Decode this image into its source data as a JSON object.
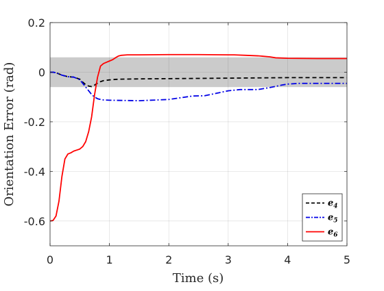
{
  "chart_data": {
    "type": "line",
    "title": "",
    "xlabel": "Time (s)",
    "ylabel": "Orientation Error (rad)",
    "xlim": [
      0,
      5
    ],
    "ylim": [
      -0.7,
      0.2
    ],
    "xticks": [
      0,
      1,
      2,
      3,
      4,
      5
    ],
    "xtick_labels": [
      "0",
      "1",
      "2",
      "3",
      "4",
      "5"
    ],
    "yticks": [
      0.2,
      0,
      -0.2,
      -0.4,
      -0.6
    ],
    "ytick_labels": [
      "0.2",
      "0",
      "-0.2",
      "-0.4",
      "-0.6"
    ],
    "grid": true,
    "legend_position": "bottom-right",
    "band": {
      "y_low": -0.06,
      "y_high": 0.06,
      "color": "#c8c8c8"
    },
    "series": [
      {
        "name": "e4",
        "legend_base": "e",
        "legend_sub": "4",
        "color": "#000000",
        "dash": "dashed",
        "x": [
          0,
          0.05,
          0.1,
          0.2,
          0.3,
          0.4,
          0.5,
          0.55,
          0.6,
          0.65,
          0.7,
          0.75,
          0.8,
          0.85,
          0.9,
          1.0,
          1.1,
          1.2,
          1.5,
          2.0,
          2.5,
          3.0,
          3.5,
          4.0,
          4.5,
          5.0
        ],
        "y": [
          0.0,
          0.0,
          -0.002,
          -0.012,
          -0.018,
          -0.02,
          -0.028,
          -0.04,
          -0.05,
          -0.056,
          -0.058,
          -0.052,
          -0.044,
          -0.038,
          -0.034,
          -0.031,
          -0.029,
          -0.028,
          -0.027,
          -0.026,
          -0.025,
          -0.024,
          -0.023,
          -0.022,
          -0.022,
          -0.022
        ]
      },
      {
        "name": "e5",
        "legend_base": "e",
        "legend_sub": "5",
        "color": "#0000e6",
        "dash": "dashdot",
        "x": [
          0,
          0.05,
          0.1,
          0.2,
          0.3,
          0.4,
          0.5,
          0.55,
          0.6,
          0.65,
          0.7,
          0.75,
          0.8,
          0.85,
          0.9,
          1.0,
          1.5,
          2.0,
          2.2,
          2.4,
          2.6,
          2.8,
          3.0,
          3.2,
          3.5,
          3.7,
          3.9,
          4.0,
          4.2,
          4.5,
          5.0
        ],
        "y": [
          0.0,
          0.0,
          -0.002,
          -0.012,
          -0.018,
          -0.02,
          -0.03,
          -0.045,
          -0.06,
          -0.075,
          -0.09,
          -0.1,
          -0.107,
          -0.11,
          -0.112,
          -0.113,
          -0.115,
          -0.11,
          -0.103,
          -0.096,
          -0.095,
          -0.085,
          -0.075,
          -0.07,
          -0.07,
          -0.062,
          -0.052,
          -0.048,
          -0.045,
          -0.045,
          -0.045
        ]
      },
      {
        "name": "e6",
        "legend_base": "e",
        "legend_sub": "6",
        "color": "#ff0000",
        "dash": "solid",
        "x": [
          0,
          0.05,
          0.1,
          0.15,
          0.2,
          0.25,
          0.3,
          0.35,
          0.4,
          0.45,
          0.5,
          0.55,
          0.6,
          0.65,
          0.7,
          0.75,
          0.8,
          0.85,
          0.9,
          0.95,
          1.0,
          1.05,
          1.1,
          1.15,
          1.2,
          1.3,
          1.5,
          2.0,
          2.5,
          3.0,
          3.1,
          3.3,
          3.5,
          3.7,
          3.8,
          4.0,
          4.5,
          5.0
        ],
        "y": [
          -0.6,
          -0.598,
          -0.58,
          -0.52,
          -0.42,
          -0.35,
          -0.33,
          -0.325,
          -0.318,
          -0.314,
          -0.31,
          -0.3,
          -0.28,
          -0.24,
          -0.18,
          -0.09,
          -0.02,
          0.025,
          0.035,
          0.04,
          0.045,
          0.05,
          0.058,
          0.065,
          0.068,
          0.07,
          0.07,
          0.071,
          0.071,
          0.07,
          0.07,
          0.068,
          0.066,
          0.062,
          0.058,
          0.056,
          0.055,
          0.055
        ]
      }
    ]
  }
}
